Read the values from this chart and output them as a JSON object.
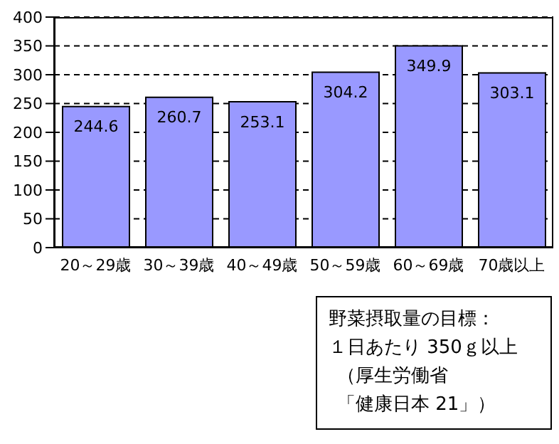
{
  "chart_data": {
    "type": "bar",
    "categories": [
      "20～29歳",
      "30～39歳",
      "40～49歳",
      "50～59歳",
      "60～69歳",
      "70歳以上"
    ],
    "values": [
      244.6,
      260.7,
      253.1,
      304.2,
      349.9,
      303.1
    ],
    "color": "#9999ff",
    "ylim": [
      0,
      400
    ],
    "yticks": [
      0,
      50,
      100,
      150,
      200,
      250,
      300,
      350,
      400
    ],
    "grid": "y",
    "data_labels": true,
    "annotations": [
      "野菜摂取量の目標：",
      "１日あたり 350ｇ以上",
      "（厚生労働省",
      "「健康日本 21」）"
    ]
  }
}
